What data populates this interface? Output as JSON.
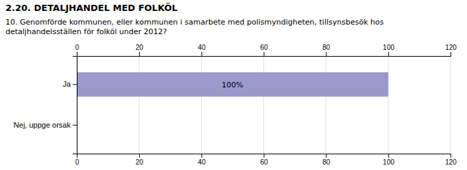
{
  "chart_data": {
    "type": "bar",
    "orientation": "horizontal",
    "title": "2.20. DETALJHANDEL MED FOLKÖL",
    "subtitle": "10. Genomförde kommunen, eller kommunen i samarbete med polismyndigheten, tillsynsbesök hos\ndetaljhandelsställen för folköl under 2012?",
    "categories": [
      "Ja",
      "Nej, uppge orsak"
    ],
    "values": [
      100,
      0
    ],
    "value_labels": [
      "100%",
      null
    ],
    "data_labels": true,
    "color": "#9999cc",
    "xlim": [
      0,
      120
    ],
    "xticks": [
      0,
      20,
      40,
      60,
      80,
      100,
      120
    ],
    "grid": true
  }
}
